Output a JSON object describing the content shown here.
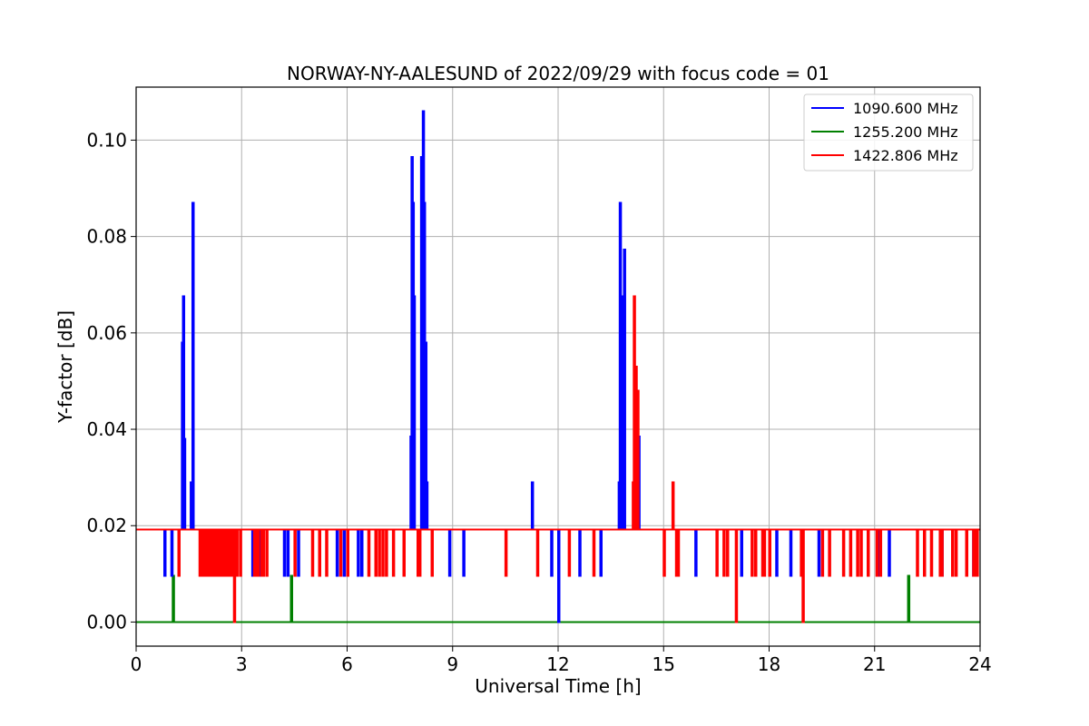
{
  "chart_data": {
    "type": "line",
    "title": "NORWAY-NY-AALESUND of 2022/09/29 with focus code = 01",
    "xlabel": "Universal Time [h]",
    "ylabel": "Y-factor [dB]",
    "xlim": [
      0,
      24
    ],
    "ylim": [
      -0.005,
      0.111
    ],
    "xticks": [
      0,
      3,
      6,
      9,
      12,
      15,
      18,
      21,
      24
    ],
    "xtick_labels": [
      "0",
      "3",
      "6",
      "9",
      "12",
      "15",
      "18",
      "21",
      "24"
    ],
    "yticks": [
      0.0,
      0.02,
      0.04,
      0.06,
      0.08,
      0.1
    ],
    "ytick_labels": [
      "0.00",
      "0.02",
      "0.04",
      "0.06",
      "0.08",
      "0.10"
    ],
    "grid": true,
    "legend_position": "top-right",
    "baseline": 0.0192,
    "series": [
      {
        "name": "1090.600 MHz",
        "color": "#0000ff",
        "spikes": [
          [
            0.8,
            0.0096
          ],
          [
            1.0,
            0.0096
          ],
          [
            1.3,
            0.058
          ],
          [
            1.33,
            0.0676
          ],
          [
            1.36,
            0.038
          ],
          [
            1.55,
            0.029
          ],
          [
            1.6,
            0.087
          ],
          [
            3.3,
            0.0096
          ],
          [
            3.5,
            0.0096
          ],
          [
            4.2,
            0.0096
          ],
          [
            4.3,
            0.0096
          ],
          [
            4.6,
            0.0096
          ],
          [
            5.7,
            0.0096
          ],
          [
            5.9,
            0.0096
          ],
          [
            6.3,
            0.0096
          ],
          [
            6.4,
            0.0096
          ],
          [
            7.8,
            0.0385
          ],
          [
            7.83,
            0.0965
          ],
          [
            7.86,
            0.087
          ],
          [
            7.89,
            0.0676
          ],
          [
            8.1,
            0.0965
          ],
          [
            8.15,
            0.106
          ],
          [
            8.18,
            0.087
          ],
          [
            8.22,
            0.058
          ],
          [
            8.25,
            0.029
          ],
          [
            8.9,
            0.0096
          ],
          [
            9.3,
            0.0096
          ],
          [
            11.25,
            0.029
          ],
          [
            11.8,
            0.0096
          ],
          [
            12.0,
            0.0
          ],
          [
            12.6,
            0.0096
          ],
          [
            13.2,
            0.0096
          ],
          [
            13.72,
            0.029
          ],
          [
            13.75,
            0.087
          ],
          [
            13.8,
            0.0676
          ],
          [
            13.87,
            0.0773
          ],
          [
            14.28,
            0.0385
          ],
          [
            15.9,
            0.0096
          ],
          [
            17.2,
            0.0096
          ],
          [
            17.6,
            0.0096
          ],
          [
            18.2,
            0.0096
          ],
          [
            18.6,
            0.0096
          ],
          [
            19.4,
            0.0096
          ],
          [
            21.1,
            0.0096
          ],
          [
            21.4,
            0.0096
          ],
          [
            22.9,
            0.0096
          ],
          [
            23.8,
            0.0096
          ]
        ]
      },
      {
        "name": "1255.200 MHz",
        "color": "#008000",
        "spikes": [
          [
            1.04,
            0.0096
          ],
          [
            4.4,
            0.0096
          ],
          [
            21.95,
            0.0096
          ]
        ]
      },
      {
        "name": "1422.806 MHz",
        "color": "#ff0000",
        "spikes": [
          [
            1.2,
            0.0096
          ],
          [
            1.8,
            0.0096
          ],
          [
            1.85,
            0.0096
          ],
          [
            1.9,
            0.0096
          ],
          [
            1.95,
            0.0096
          ],
          [
            2.0,
            0.0096
          ],
          [
            2.05,
            0.0096
          ],
          [
            2.1,
            0.0096
          ],
          [
            2.15,
            0.0096
          ],
          [
            2.2,
            0.0096
          ],
          [
            2.25,
            0.0096
          ],
          [
            2.3,
            0.0096
          ],
          [
            2.35,
            0.0096
          ],
          [
            2.4,
            0.0096
          ],
          [
            2.45,
            0.0096
          ],
          [
            2.5,
            0.0096
          ],
          [
            2.55,
            0.0096
          ],
          [
            2.6,
            0.0096
          ],
          [
            2.65,
            0.0096
          ],
          [
            2.7,
            0.0096
          ],
          [
            2.78,
            0.0
          ],
          [
            2.85,
            0.0096
          ],
          [
            2.95,
            0.0096
          ],
          [
            3.35,
            0.0096
          ],
          [
            3.4,
            0.0096
          ],
          [
            3.45,
            0.0096
          ],
          [
            3.55,
            0.0096
          ],
          [
            3.6,
            0.0096
          ],
          [
            3.7,
            0.0096
          ],
          [
            4.5,
            0.0096
          ],
          [
            5.0,
            0.0096
          ],
          [
            5.2,
            0.0096
          ],
          [
            5.4,
            0.0096
          ],
          [
            5.8,
            0.0096
          ],
          [
            6.0,
            0.0096
          ],
          [
            6.6,
            0.0096
          ],
          [
            6.8,
            0.0096
          ],
          [
            6.9,
            0.0096
          ],
          [
            7.0,
            0.0096
          ],
          [
            7.1,
            0.0096
          ],
          [
            7.3,
            0.0096
          ],
          [
            7.6,
            0.0096
          ],
          [
            8.0,
            0.0096
          ],
          [
            8.05,
            0.0096
          ],
          [
            8.4,
            0.0096
          ],
          [
            10.5,
            0.0096
          ],
          [
            11.4,
            0.0096
          ],
          [
            12.3,
            0.0096
          ],
          [
            13.0,
            0.0096
          ],
          [
            14.15,
            0.0676
          ],
          [
            14.2,
            0.053
          ],
          [
            14.25,
            0.048
          ],
          [
            14.12,
            0.029
          ],
          [
            15.0,
            0.0096
          ],
          [
            15.25,
            0.029
          ],
          [
            15.35,
            0.0096
          ],
          [
            15.4,
            0.0096
          ],
          [
            16.5,
            0.0096
          ],
          [
            16.7,
            0.0096
          ],
          [
            16.8,
            0.0096
          ],
          [
            17.05,
            0.0
          ],
          [
            17.5,
            0.0096
          ],
          [
            17.6,
            0.0096
          ],
          [
            17.8,
            0.0096
          ],
          [
            17.85,
            0.0096
          ],
          [
            18.0,
            0.0096
          ],
          [
            18.9,
            0.0096
          ],
          [
            18.95,
            0.0
          ],
          [
            19.5,
            0.0096
          ],
          [
            19.7,
            0.0096
          ],
          [
            20.1,
            0.0096
          ],
          [
            20.3,
            0.0096
          ],
          [
            20.5,
            0.0096
          ],
          [
            20.6,
            0.0096
          ],
          [
            20.8,
            0.0096
          ],
          [
            21.05,
            0.0096
          ],
          [
            21.15,
            0.0096
          ],
          [
            22.2,
            0.0096
          ],
          [
            22.4,
            0.0096
          ],
          [
            22.6,
            0.0096
          ],
          [
            22.85,
            0.0096
          ],
          [
            22.9,
            0.0096
          ],
          [
            23.2,
            0.0096
          ],
          [
            23.3,
            0.0096
          ],
          [
            23.6,
            0.0096
          ],
          [
            23.8,
            0.0096
          ],
          [
            23.85,
            0.0096
          ],
          [
            23.9,
            0.0096
          ]
        ]
      }
    ]
  }
}
